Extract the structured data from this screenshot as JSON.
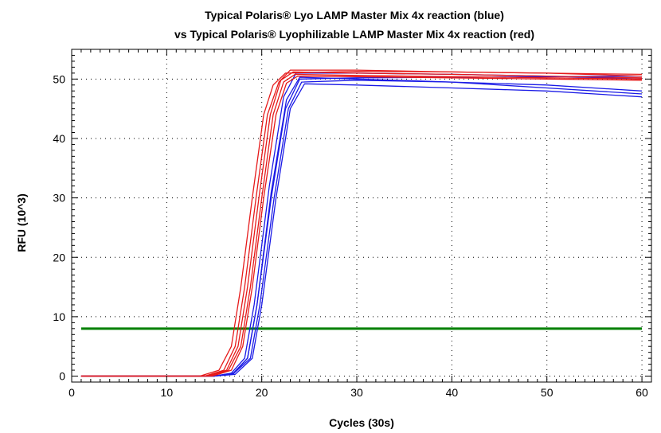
{
  "chart_data": {
    "type": "line",
    "title_lines": [
      "Typical Polaris® Lyo LAMP Master Mix 4x reaction (blue)",
      "vs Typical Polaris® Lyophilizable LAMP Master Mix 4x reaction (red)"
    ],
    "xlabel": "Cycles (30s)",
    "ylabel": "RFU (10^3)",
    "xlim": [
      0,
      61
    ],
    "ylim": [
      -1,
      55
    ],
    "x_ticks": [
      0,
      10,
      20,
      30,
      40,
      50,
      60
    ],
    "y_ticks": [
      0,
      10,
      20,
      30,
      40,
      50
    ],
    "grid": true,
    "grid_style": "dotted",
    "legend": "none",
    "colors": {
      "blue": "#1a1ae6",
      "red": "#e61a1a",
      "threshold": "#008000"
    },
    "threshold": {
      "y": 8,
      "x_range": [
        1,
        60
      ]
    },
    "series": [
      {
        "color": "blue",
        "values": [
          [
            1,
            0
          ],
          [
            15,
            0
          ],
          [
            17,
            0.5
          ],
          [
            18.5,
            3
          ],
          [
            19.5,
            12
          ],
          [
            21,
            30
          ],
          [
            22.5,
            45
          ],
          [
            24,
            50
          ],
          [
            30,
            50.2
          ],
          [
            40,
            50.3
          ],
          [
            50,
            50.4
          ],
          [
            60,
            50.5
          ]
        ]
      },
      {
        "color": "blue",
        "values": [
          [
            1,
            0
          ],
          [
            15,
            0
          ],
          [
            17,
            0.4
          ],
          [
            18.8,
            3
          ],
          [
            19.8,
            12
          ],
          [
            21.3,
            30
          ],
          [
            22.8,
            45
          ],
          [
            24.2,
            49.5
          ],
          [
            30,
            49.8
          ],
          [
            40,
            49.5
          ],
          [
            50,
            49
          ],
          [
            60,
            48
          ]
        ]
      },
      {
        "color": "blue",
        "values": [
          [
            1,
            0
          ],
          [
            15,
            0
          ],
          [
            17.2,
            0.3
          ],
          [
            19,
            3
          ],
          [
            20,
            12
          ],
          [
            21.5,
            30
          ],
          [
            23,
            45
          ],
          [
            24.5,
            49.2
          ],
          [
            30,
            49
          ],
          [
            40,
            48.5
          ],
          [
            50,
            48
          ],
          [
            60,
            47
          ]
        ]
      },
      {
        "color": "blue",
        "values": [
          [
            1,
            0
          ],
          [
            15,
            0
          ],
          [
            16.8,
            0.5
          ],
          [
            18.2,
            3
          ],
          [
            19.2,
            12
          ],
          [
            20.8,
            32
          ],
          [
            22.3,
            47
          ],
          [
            23.6,
            51
          ],
          [
            30,
            51
          ],
          [
            40,
            50.8
          ],
          [
            50,
            50.5
          ],
          [
            60,
            50
          ]
        ]
      },
      {
        "color": "blue",
        "values": [
          [
            1,
            0
          ],
          [
            15,
            0
          ],
          [
            17,
            0.4
          ],
          [
            18.5,
            3
          ],
          [
            19.5,
            12
          ],
          [
            21,
            31
          ],
          [
            22.6,
            46.5
          ],
          [
            24,
            50.3
          ],
          [
            30,
            50
          ],
          [
            40,
            49.5
          ],
          [
            50,
            48.5
          ],
          [
            60,
            47.5
          ]
        ]
      },
      {
        "color": "red",
        "values": [
          [
            1,
            0
          ],
          [
            13.5,
            0
          ],
          [
            15.5,
            1
          ],
          [
            16.8,
            5
          ],
          [
            17.8,
            15
          ],
          [
            19,
            30
          ],
          [
            20.2,
            44
          ],
          [
            21.2,
            49
          ],
          [
            22.5,
            51
          ],
          [
            30,
            51.3
          ],
          [
            40,
            51.2
          ],
          [
            50,
            51
          ],
          [
            60,
            50.8
          ]
        ]
      },
      {
        "color": "red",
        "values": [
          [
            1,
            0
          ],
          [
            14,
            0
          ],
          [
            16,
            1
          ],
          [
            17.2,
            5
          ],
          [
            18.2,
            15
          ],
          [
            19.4,
            30
          ],
          [
            20.6,
            44
          ],
          [
            21.8,
            49.5
          ],
          [
            23,
            51.5
          ],
          [
            30,
            51.5
          ],
          [
            40,
            51.2
          ],
          [
            50,
            51
          ],
          [
            60,
            50.5
          ]
        ]
      },
      {
        "color": "red",
        "values": [
          [
            1,
            0
          ],
          [
            14.2,
            0
          ],
          [
            16.3,
            1
          ],
          [
            17.5,
            5
          ],
          [
            18.5,
            15
          ],
          [
            19.7,
            30
          ],
          [
            20.9,
            44
          ],
          [
            22,
            49.8
          ],
          [
            23.3,
            51.2
          ],
          [
            30,
            51
          ],
          [
            40,
            50.8
          ],
          [
            50,
            50.5
          ],
          [
            60,
            50.2
          ]
        ]
      },
      {
        "color": "red",
        "values": [
          [
            1,
            0
          ],
          [
            14.5,
            0
          ],
          [
            16.5,
            1
          ],
          [
            17.8,
            5
          ],
          [
            18.8,
            15
          ],
          [
            20,
            30
          ],
          [
            21.2,
            44
          ],
          [
            22.3,
            49.5
          ],
          [
            23.5,
            50.8
          ],
          [
            30,
            50.6
          ],
          [
            40,
            50.4
          ],
          [
            50,
            50.2
          ],
          [
            60,
            50
          ]
        ]
      },
      {
        "color": "red",
        "values": [
          [
            1,
            0
          ],
          [
            14.8,
            0
          ],
          [
            16.8,
            1
          ],
          [
            18,
            5
          ],
          [
            19,
            15
          ],
          [
            20.2,
            30
          ],
          [
            21.5,
            44
          ],
          [
            22.6,
            49.3
          ],
          [
            23.8,
            50.5
          ],
          [
            30,
            50.4
          ],
          [
            40,
            50.2
          ],
          [
            50,
            50
          ],
          [
            60,
            49.8
          ]
        ]
      }
    ]
  }
}
